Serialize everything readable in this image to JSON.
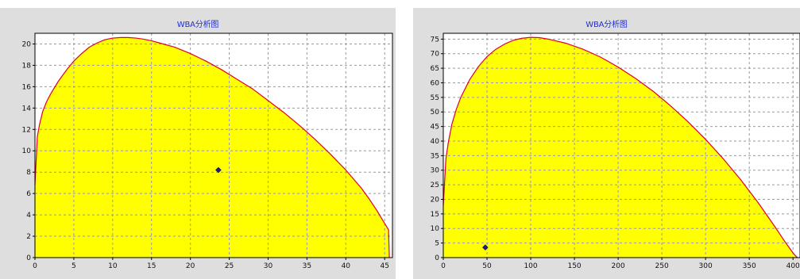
{
  "chart_data": [
    {
      "type": "area",
      "title": "WBA分析图",
      "xlabel": "",
      "ylabel": "",
      "xlim": [
        0,
        46
      ],
      "ylim": [
        0,
        21
      ],
      "x_ticks": [
        0,
        5,
        10,
        15,
        20,
        25,
        30,
        35,
        40,
        45
      ],
      "y_ticks": [
        0,
        2,
        4,
        6,
        8,
        10,
        12,
        14,
        16,
        18,
        20
      ],
      "grid": true,
      "legend": "none",
      "envelope": {
        "x": [
          0,
          0.3,
          0.6,
          1,
          1.5,
          2,
          3,
          4,
          5,
          6,
          7,
          8,
          9,
          10,
          11,
          12,
          13,
          14,
          15,
          16,
          18,
          20,
          22,
          24,
          26,
          28,
          30,
          32,
          34,
          36,
          38,
          40,
          42,
          43,
          44,
          44.5,
          45,
          45.5,
          45.6
        ],
        "upper": [
          6.8,
          11.3,
          12.5,
          13.7,
          14.6,
          15.3,
          16.5,
          17.5,
          18.4,
          19.1,
          19.7,
          20.1,
          20.4,
          20.55,
          20.6,
          20.6,
          20.55,
          20.45,
          20.3,
          20.1,
          19.7,
          19.1,
          18.4,
          17.6,
          16.7,
          15.8,
          14.7,
          13.6,
          12.4,
          11.1,
          9.7,
          8.2,
          6.5,
          5.5,
          4.4,
          3.8,
          3.2,
          2.6,
          0
        ],
        "lower": 0
      },
      "point": {
        "x": 23.6,
        "y": 8.2
      },
      "colors": {
        "fill": "#ffff00",
        "edge": "#e0002a",
        "point": "#1a1a8c",
        "grid": "#9a9a9a",
        "plot_bg": "#ffffff",
        "panel_bg": "#dedede",
        "title": "#1f2fd8"
      }
    },
    {
      "type": "area",
      "title": "WBA分析图",
      "xlabel": "",
      "ylabel": "",
      "xlim": [
        0,
        408
      ],
      "ylim": [
        0,
        77
      ],
      "x_ticks": [
        0,
        50,
        100,
        150,
        200,
        250,
        300,
        350,
        400
      ],
      "y_ticks": [
        0,
        5,
        10,
        15,
        20,
        25,
        30,
        35,
        40,
        45,
        50,
        55,
        60,
        65,
        70,
        75
      ],
      "grid": true,
      "legend": "none",
      "envelope": {
        "x": [
          0,
          3,
          6,
          10,
          15,
          20,
          30,
          40,
          50,
          60,
          70,
          80,
          90,
          100,
          110,
          120,
          140,
          160,
          180,
          200,
          220,
          240,
          260,
          280,
          300,
          320,
          340,
          360,
          380,
          390,
          395,
          400,
          403,
          405
        ],
        "upper": [
          18,
          34,
          40,
          46,
          51,
          55,
          61,
          65.5,
          69,
          71.5,
          73.3,
          74.6,
          75.3,
          75.6,
          75.5,
          75,
          73.6,
          71.5,
          68.8,
          65.4,
          61.5,
          57.1,
          52.1,
          46.6,
          40.6,
          34,
          26.8,
          18.9,
          10.3,
          5.8,
          3.7,
          1.6,
          0.6,
          0
        ],
        "lower": 0
      },
      "point": {
        "x": 48,
        "y": 3.5
      },
      "colors": {
        "fill": "#ffff00",
        "edge": "#e0002a",
        "point": "#1a1a8c",
        "grid": "#9a9a9a",
        "plot_bg": "#ffffff",
        "panel_bg": "#dedede",
        "title": "#1f2fd8"
      }
    }
  ]
}
